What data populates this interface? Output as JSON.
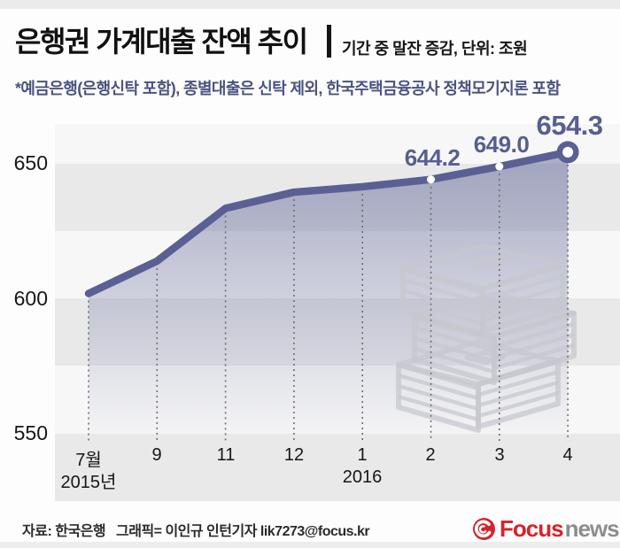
{
  "header": {
    "title": "은행권 가계대출 잔액 추이",
    "subtitle": "기간 중 말잔 증감, 단위: 조원",
    "note": "*예금은행(은행신탁 포함), 종별대출은 신탁 제외, 한국주택금융공사 정책모기지론 포함"
  },
  "chart_data": {
    "type": "line",
    "title": "은행권 가계대출 잔액 추이",
    "unit": "조원",
    "x": [
      "7월",
      "9",
      "11",
      "12",
      "1",
      "2",
      "3",
      "4"
    ],
    "x_years": [
      {
        "label": "2015년",
        "at": "7월"
      },
      {
        "label": "2016",
        "at": "1"
      }
    ],
    "values": [
      602,
      614,
      633.5,
      639.5,
      641.5,
      644.2,
      649.0,
      654.3
    ],
    "point_labels": [
      null,
      null,
      null,
      null,
      null,
      "644.2",
      "649.0",
      "654.3"
    ],
    "yticks": [
      650,
      600,
      550
    ],
    "ytick_labels": [
      "650",
      "600",
      "550"
    ],
    "ylim": [
      550,
      665
    ],
    "grid": "dotted vertical line at each x tick",
    "legend": "none",
    "line_color": "#5a6094",
    "area_fill": "vertical gradient rgba(89,95,147,0.5) to transparent",
    "end_marker": "ring on last point",
    "background_bands": "#e9e9ea horizontal stripes every 25 units"
  },
  "footer": {
    "source": "자료: 한국은행",
    "credit": "그래픽= 이인규 인턴기자 lik7273@focus.kr",
    "logo_focus": "Focus",
    "logo_news": "news"
  },
  "colors": {
    "accent_navy": "#4b5380",
    "line": "#5a6094",
    "band_gray": "#e9e9ea",
    "logo_red": "#d6232c",
    "logo_gray": "#8d8d8d"
  }
}
